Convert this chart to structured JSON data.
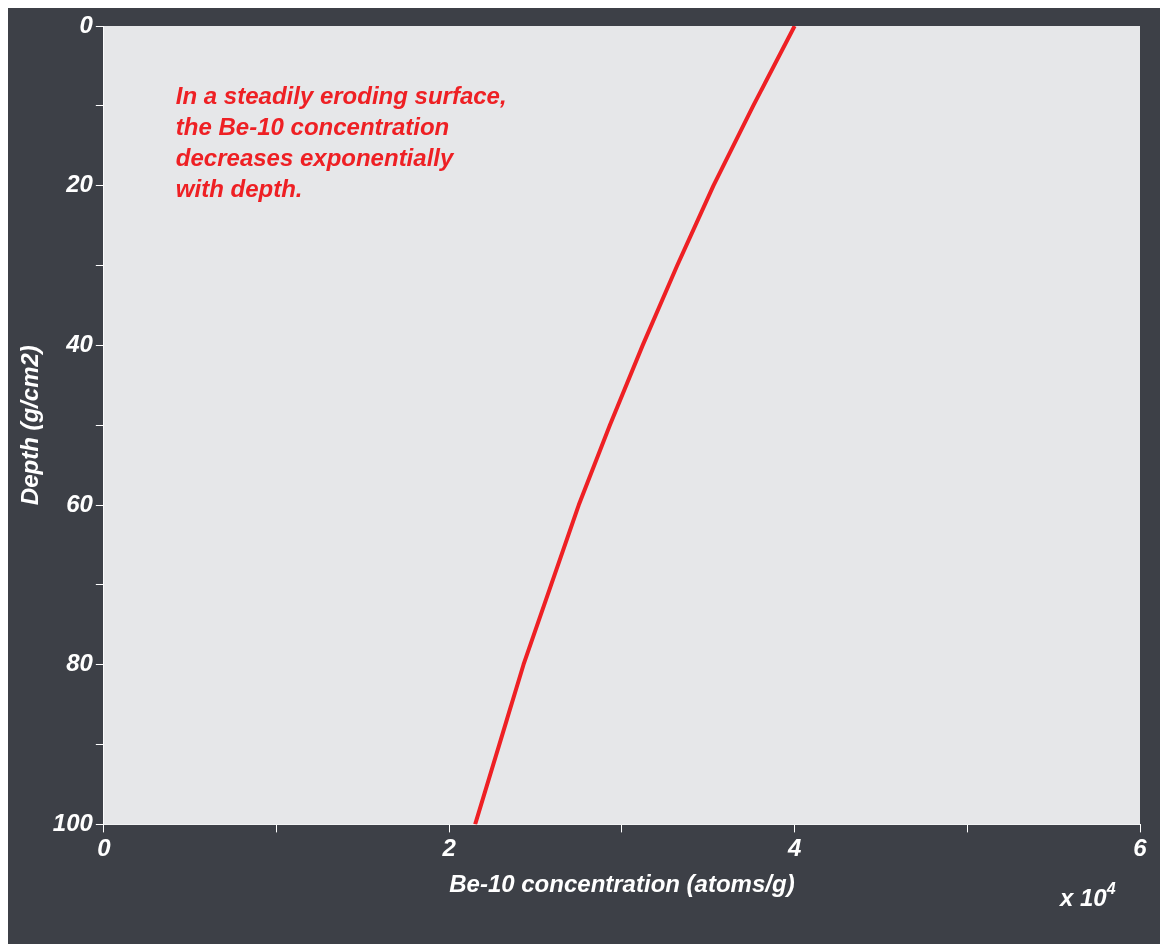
{
  "chart_data": {
    "type": "line",
    "xlabel": "Be-10 concentration (atoms/g)",
    "ylabel": "Depth (g/cm2)",
    "x": [
      4,
      3.76,
      3.53,
      3.32,
      3.12,
      2.93,
      2.75,
      2.59,
      2.43,
      2.29,
      2.15
    ],
    "series": [
      {
        "color": "#ee2024",
        "values": [
          0,
          10,
          20,
          30,
          40,
          50,
          60,
          70,
          80,
          90,
          100
        ]
      }
    ],
    "xlim": [
      0,
      6
    ],
    "xticks": [
      0,
      {
        "value": 1,
        "label": null
      },
      2,
      {
        "value": 3,
        "label": null
      },
      4,
      {
        "value": 5,
        "label": null
      },
      6
    ],
    "ylim": [
      100,
      0
    ],
    "yticks": [
      0,
      {
        "value": 10,
        "label": null
      },
      20,
      {
        "value": 30,
        "label": null
      },
      40,
      {
        "value": 50,
        "label": null
      },
      60,
      {
        "value": 70,
        "label": null
      },
      80,
      {
        "value": 90,
        "label": null
      },
      100
    ],
    "marker": "none",
    "line_style": "solid",
    "annotations": [
      "In a steadily eroding surface,\nthe Be-10 concentration\ndecreases exponentially\nwith depth.",
      "x 10$^{4}$"
    ]
  }
}
